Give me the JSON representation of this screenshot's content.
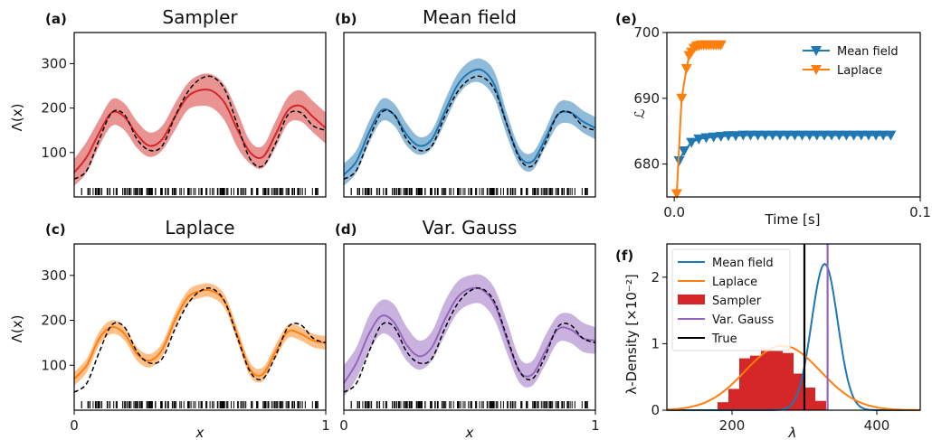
{
  "colors": {
    "sampler": "#d62728",
    "mean_field": "#1f77b4",
    "laplace": "#ff7f0e",
    "var_gauss": "#9467bd",
    "true": "#000000"
  },
  "chart_data": [
    {
      "id": "a",
      "type": "line",
      "panel_label": "(a)",
      "title": "Sampler",
      "xlabel": "",
      "ylabel": "Λ(x)",
      "xlim": [
        0,
        1
      ],
      "ylim": [
        0,
        370
      ],
      "yticks": [
        100,
        200,
        300
      ],
      "xticks": [],
      "color": "sampler",
      "x": [
        0,
        0.05,
        0.1,
        0.15,
        0.2,
        0.25,
        0.3,
        0.35,
        0.4,
        0.45,
        0.5,
        0.55,
        0.6,
        0.65,
        0.7,
        0.75,
        0.8,
        0.85,
        0.9,
        0.95,
        1.0
      ],
      "mean": [
        55,
        90,
        145,
        190,
        180,
        140,
        115,
        130,
        180,
        225,
        240,
        238,
        210,
        150,
        100,
        90,
        140,
        195,
        205,
        180,
        155
      ],
      "lower": [
        25,
        55,
        115,
        160,
        150,
        110,
        90,
        105,
        150,
        195,
        205,
        200,
        170,
        110,
        75,
        65,
        110,
        165,
        170,
        145,
        120
      ],
      "upper": [
        85,
        125,
        175,
        220,
        210,
        170,
        145,
        160,
        210,
        255,
        275,
        275,
        250,
        190,
        125,
        115,
        170,
        225,
        240,
        215,
        190
      ],
      "true": [
        40,
        60,
        130,
        190,
        185,
        130,
        105,
        115,
        180,
        235,
        265,
        270,
        240,
        160,
        85,
        70,
        120,
        185,
        190,
        160,
        150
      ]
    },
    {
      "id": "b",
      "type": "line",
      "panel_label": "(b)",
      "title": "Mean field",
      "xlabel": "",
      "ylabel": "",
      "xlim": [
        0,
        1
      ],
      "ylim": [
        0,
        370
      ],
      "yticks": [],
      "xticks": [],
      "color": "mean_field",
      "x": [
        0,
        0.05,
        0.1,
        0.15,
        0.2,
        0.25,
        0.3,
        0.35,
        0.4,
        0.45,
        0.5,
        0.55,
        0.6,
        0.65,
        0.7,
        0.75,
        0.8,
        0.85,
        0.9,
        0.95,
        1.0
      ],
      "mean": [
        50,
        80,
        145,
        195,
        185,
        140,
        115,
        130,
        190,
        250,
        280,
        285,
        250,
        160,
        90,
        80,
        130,
        185,
        190,
        170,
        155
      ],
      "lower": [
        25,
        55,
        120,
        170,
        160,
        115,
        95,
        110,
        165,
        225,
        255,
        255,
        220,
        135,
        70,
        60,
        110,
        160,
        165,
        145,
        130
      ],
      "upper": [
        75,
        105,
        170,
        220,
        210,
        165,
        135,
        150,
        215,
        275,
        305,
        310,
        280,
        185,
        110,
        100,
        150,
        210,
        215,
        195,
        180
      ],
      "true": [
        40,
        60,
        130,
        190,
        185,
        130,
        105,
        115,
        180,
        235,
        265,
        270,
        240,
        160,
        85,
        70,
        120,
        185,
        190,
        160,
        150
      ]
    },
    {
      "id": "c",
      "type": "line",
      "panel_label": "(c)",
      "title": "Laplace",
      "xlabel": "",
      "ylabel": "Λ(x)",
      "xlim": [
        0,
        1
      ],
      "ylim": [
        0,
        370
      ],
      "yticks": [
        100,
        200,
        300
      ],
      "xticks": [
        {
          "v": 0,
          "t": "0"
        },
        {
          "v": 1,
          "t": "1"
        }
      ],
      "color": "laplace",
      "x": [
        0,
        0.05,
        0.1,
        0.15,
        0.2,
        0.25,
        0.3,
        0.35,
        0.4,
        0.45,
        0.5,
        0.55,
        0.6,
        0.65,
        0.7,
        0.75,
        0.8,
        0.85,
        0.9,
        0.95,
        1.0
      ],
      "mean": [
        70,
        100,
        160,
        185,
        170,
        125,
        110,
        135,
        200,
        250,
        265,
        265,
        240,
        165,
        90,
        80,
        130,
        175,
        170,
        155,
        150
      ],
      "lower": [
        55,
        85,
        145,
        170,
        155,
        110,
        95,
        120,
        185,
        235,
        250,
        250,
        225,
        150,
        75,
        65,
        115,
        160,
        155,
        140,
        135
      ],
      "upper": [
        85,
        115,
        175,
        200,
        185,
        140,
        125,
        150,
        215,
        265,
        280,
        280,
        255,
        180,
        105,
        95,
        145,
        190,
        185,
        170,
        165
      ],
      "true": [
        40,
        60,
        130,
        190,
        185,
        130,
        105,
        115,
        180,
        235,
        265,
        270,
        240,
        160,
        85,
        70,
        120,
        185,
        190,
        160,
        150
      ]
    },
    {
      "id": "d",
      "type": "line",
      "panel_label": "(d)",
      "title": "Var. Gauss",
      "xlabel": "",
      "ylabel": "",
      "xlim": [
        0,
        1
      ],
      "ylim": [
        0,
        370
      ],
      "yticks": [],
      "xticks": [
        {
          "v": 0,
          "t": "0"
        },
        {
          "v": 1,
          "t": "1"
        }
      ],
      "color": "var_gauss",
      "x": [
        0,
        0.05,
        0.1,
        0.15,
        0.2,
        0.25,
        0.3,
        0.35,
        0.4,
        0.45,
        0.5,
        0.55,
        0.6,
        0.65,
        0.7,
        0.75,
        0.8,
        0.85,
        0.9,
        0.95,
        1.0
      ],
      "mean": [
        60,
        105,
        170,
        210,
        195,
        145,
        120,
        140,
        200,
        250,
        270,
        268,
        235,
        155,
        85,
        80,
        130,
        180,
        180,
        160,
        155
      ],
      "lower": [
        30,
        70,
        130,
        170,
        155,
        110,
        90,
        110,
        165,
        215,
        235,
        235,
        200,
        125,
        60,
        55,
        100,
        150,
        150,
        130,
        125
      ],
      "upper": [
        100,
        140,
        210,
        245,
        235,
        185,
        155,
        175,
        240,
        285,
        300,
        300,
        270,
        195,
        115,
        110,
        165,
        210,
        215,
        195,
        185
      ],
      "true": [
        40,
        60,
        130,
        190,
        185,
        130,
        105,
        115,
        180,
        235,
        265,
        270,
        240,
        160,
        85,
        70,
        120,
        185,
        190,
        160,
        150
      ]
    },
    {
      "id": "e",
      "type": "line",
      "panel_label": "(e)",
      "title": "",
      "xlabel": "Time [s]",
      "ylabel": "ℒ",
      "xlim": [
        -0.003,
        0.1
      ],
      "ylim": [
        675,
        700
      ],
      "yticks": [
        680,
        690,
        700
      ],
      "xticks": [
        {
          "v": 0.0,
          "t": "0.0"
        },
        {
          "v": 0.1,
          "t": "0.1"
        }
      ],
      "legend": "top-right",
      "series": [
        {
          "name": "Mean field",
          "color": "mean_field",
          "x": [
            0.002,
            0.004,
            0.007,
            0.01,
            0.013,
            0.016,
            0.019,
            0.022,
            0.025,
            0.028,
            0.031,
            0.034,
            0.037,
            0.04,
            0.043,
            0.046,
            0.049,
            0.052,
            0.055,
            0.058,
            0.061,
            0.064,
            0.067,
            0.07,
            0.073,
            0.076,
            0.079,
            0.082,
            0.085,
            0.088
          ],
          "y": [
            680.5,
            682.0,
            683.3,
            683.8,
            684.0,
            684.1,
            684.2,
            684.3,
            684.3,
            684.4,
            684.4,
            684.4,
            684.4,
            684.4,
            684.4,
            684.4,
            684.4,
            684.4,
            684.4,
            684.4,
            684.4,
            684.4,
            684.4,
            684.4,
            684.4,
            684.4,
            684.4,
            684.4,
            684.4,
            684.4
          ]
        },
        {
          "name": "Laplace",
          "color": "laplace",
          "x": [
            0.001,
            0.003,
            0.005,
            0.006,
            0.007,
            0.008,
            0.009,
            0.01,
            0.011,
            0.012,
            0.013,
            0.014,
            0.015,
            0.016,
            0.017,
            0.018,
            0.019
          ],
          "y": [
            675.5,
            690.0,
            694.5,
            696.5,
            697.0,
            697.6,
            697.9,
            698.0,
            698.1,
            698.1,
            698.1,
            698.1,
            698.1,
            698.1,
            698.1,
            698.1,
            698.1
          ]
        }
      ]
    },
    {
      "id": "f",
      "type": "bar",
      "panel_label": "(f)",
      "title": "",
      "xlabel": "λ",
      "ylabel": "λ-Density [×10⁻²]",
      "xlim": [
        110,
        460
      ],
      "ylim": [
        0,
        2.5
      ],
      "yticks": [
        0,
        1,
        2
      ],
      "xticks": [
        {
          "v": 200,
          "t": "200"
        },
        {
          "v": 400,
          "t": "400"
        }
      ],
      "legend": "top-left",
      "histogram": {
        "name": "Sampler",
        "color": "sampler",
        "bins": [
          [
            180,
            195,
            0.12
          ],
          [
            195,
            210,
            0.32
          ],
          [
            210,
            225,
            0.78
          ],
          [
            225,
            240,
            0.82
          ],
          [
            240,
            255,
            0.92
          ],
          [
            255,
            270,
            0.9
          ],
          [
            270,
            285,
            0.86
          ],
          [
            285,
            300,
            0.55
          ],
          [
            300,
            315,
            0.34
          ],
          [
            315,
            330,
            0.14
          ]
        ]
      },
      "curves": [
        {
          "name": "Mean field",
          "color": "mean_field",
          "mu": 328,
          "sigma": 18,
          "peak": 2.2
        },
        {
          "name": "Laplace",
          "color": "laplace",
          "mu": 270,
          "sigma": 52,
          "peak": 0.97
        }
      ],
      "vlines": [
        {
          "name": "Var. Gauss",
          "color": "var_gauss",
          "x": 332
        },
        {
          "name": "True",
          "color": "true",
          "x": 300
        }
      ]
    }
  ]
}
